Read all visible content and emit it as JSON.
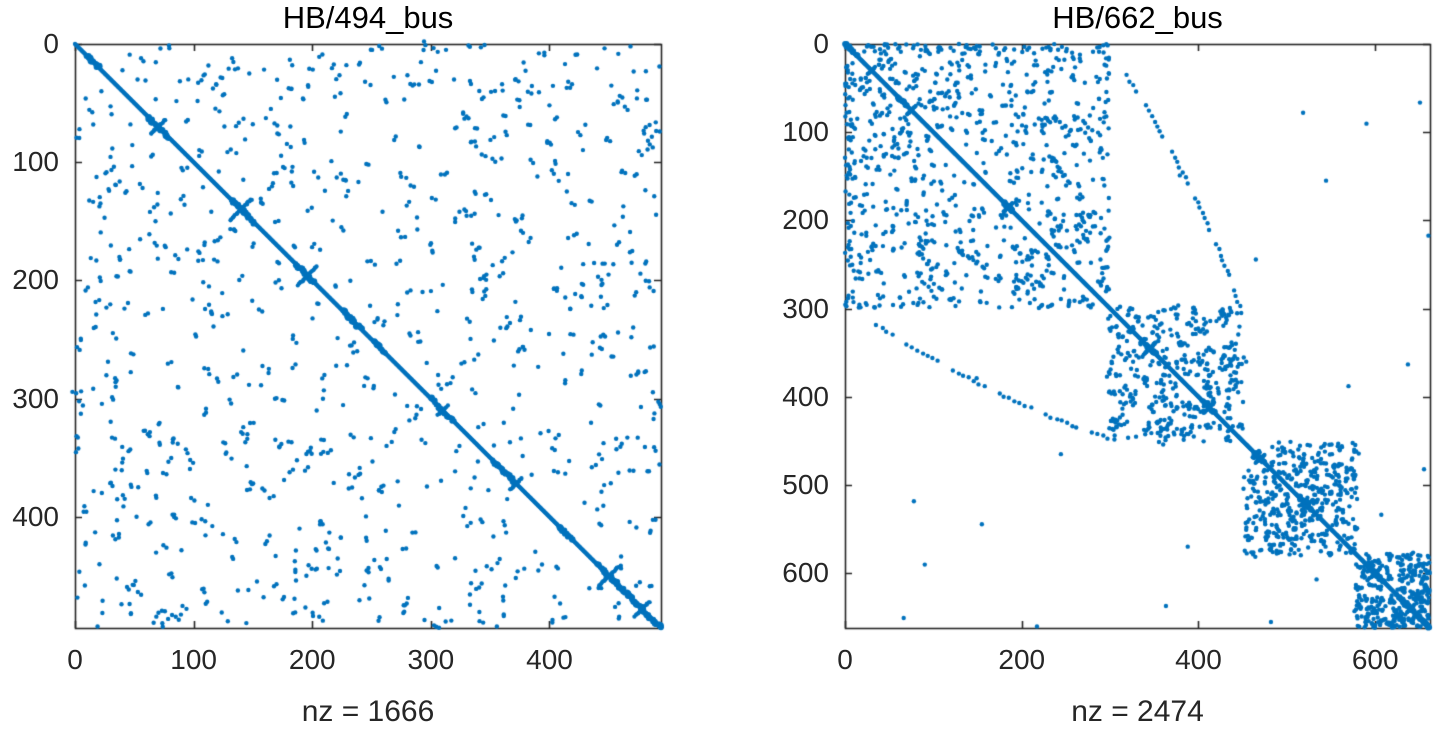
{
  "figure": {
    "background": "#ffffff",
    "description": "Two sparse-matrix sparsity (spy) plots side by side"
  },
  "chart_data": [
    {
      "type": "scatter",
      "subtype": "spy-sparsity-pattern",
      "title": "HB/494_bus",
      "xlabel": "nz = 1666",
      "ylabel": "",
      "matrix_rows": 494,
      "matrix_cols": 494,
      "nnz": 1666,
      "xlim": [
        0,
        494
      ],
      "ylim": [
        0,
        494
      ],
      "y_axis_reversed": true,
      "xticks": [
        0,
        100,
        200,
        300,
        400
      ],
      "yticks": [
        0,
        100,
        200,
        300,
        400
      ],
      "grid": false,
      "legend": null,
      "marker_color": "#0072BD",
      "axis_color": "#262626",
      "text_color": "#262626",
      "seed": 20494,
      "structure": {
        "diagonal": true,
        "diagonal_bulges": [
          [
            10,
            20
          ],
          [
            62,
            80
          ],
          [
            132,
            152
          ],
          [
            186,
            202
          ],
          [
            226,
            242
          ],
          [
            252,
            262
          ],
          [
            300,
            320
          ],
          [
            352,
            372
          ],
          [
            408,
            420
          ],
          [
            440,
            494
          ]
        ],
        "anti_diagonal_crossings": [
          [
            70,
            6
          ],
          [
            140,
            9
          ],
          [
            196,
            8
          ],
          [
            310,
            4
          ],
          [
            372,
            5
          ],
          [
            450,
            8
          ],
          [
            478,
            6
          ]
        ],
        "offdiag_pairs": 400,
        "min_offset": 10,
        "cluster_prob": 0.45,
        "strays": 0
      }
    },
    {
      "type": "scatter",
      "subtype": "spy-sparsity-pattern",
      "title": "HB/662_bus",
      "xlabel": "nz = 2474",
      "ylabel": "",
      "matrix_rows": 662,
      "matrix_cols": 662,
      "nnz": 2474,
      "xlim": [
        0,
        662
      ],
      "ylim": [
        0,
        662
      ],
      "y_axis_reversed": true,
      "xticks": [
        0,
        200,
        400,
        600
      ],
      "yticks": [
        0,
        100,
        200,
        300,
        400,
        500,
        600
      ],
      "grid": false,
      "legend": null,
      "marker_color": "#0072BD",
      "axis_color": "#262626",
      "text_color": "#262626",
      "seed": 20662,
      "structure": {
        "diagonal": true,
        "diagonal_bulges": [
          [
            0,
            14
          ],
          [
            60,
            70
          ],
          [
            180,
            190
          ],
          [
            340,
            352
          ],
          [
            404,
            418
          ],
          [
            464,
            476
          ],
          [
            514,
            528
          ],
          [
            592,
            610
          ],
          [
            628,
            662
          ]
        ],
        "anti_diagonal_crossings": [
          [
            30,
            4
          ],
          [
            75,
            5
          ],
          [
            185,
            5
          ],
          [
            345,
            7
          ],
          [
            412,
            6
          ],
          [
            470,
            5
          ],
          [
            523,
            6
          ],
          [
            600,
            5
          ],
          [
            640,
            4
          ]
        ],
        "blocks": [
          {
            "from": 0,
            "to": 300,
            "pairs": 310,
            "min_offset": 10,
            "cluster_prob": 0.42
          },
          {
            "from": 298,
            "to": 452,
            "pairs": 150,
            "min_offset": 3,
            "cluster_prob": 0.5
          },
          {
            "from": 450,
            "to": 580,
            "pairs": 160,
            "min_offset": 3,
            "cluster_prob": 0.5
          },
          {
            "from": 578,
            "to": 662,
            "pairs": 115,
            "min_offset": 2,
            "cluster_prob": 0.55
          }
        ],
        "edge_strip": {
          "col_max": 9,
          "row_min": 12,
          "row_max": 300,
          "count": 45
        },
        "arc": {
          "p0": [
            318,
            36
          ],
          "p1": [
            402,
            165
          ],
          "p2": [
            447,
            298
          ],
          "dots": 46
        },
        "strays": 16
      }
    }
  ]
}
